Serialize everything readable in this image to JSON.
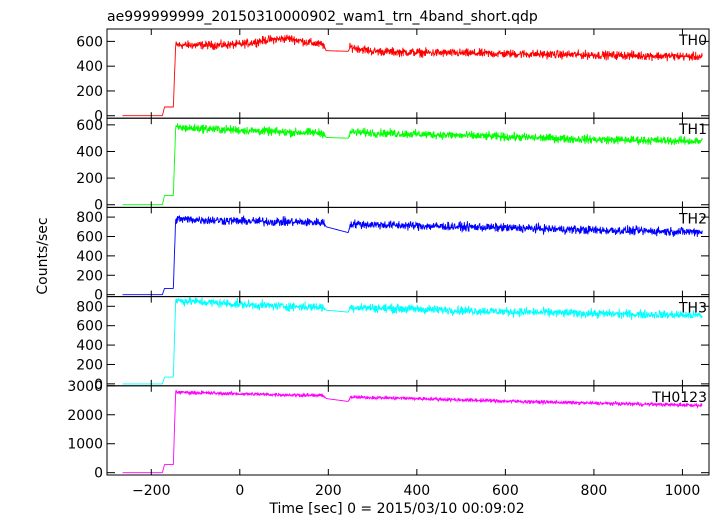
{
  "chart_data": {
    "type": "line",
    "title": "ae999999999_20150310000902_wam1_trn_4band_short.qdp",
    "xlabel": "Time [sec] 0 = 2015/03/10 00:09:02",
    "ylabel": "Counts/sec",
    "xlim": [
      -300,
      1060
    ],
    "x_ticks": [
      -200,
      0,
      200,
      400,
      600,
      800,
      1000
    ],
    "x_tick_labels": [
      "−200",
      "0",
      "200",
      "400",
      "600",
      "800",
      "1000"
    ],
    "grid": false,
    "panels": [
      {
        "name": "TH0",
        "color": "#ff0000",
        "ylim": [
          -20,
          700
        ],
        "y_ticks": [
          0,
          200,
          400,
          600
        ],
        "y_tick_labels": [
          "0",
          "200",
          "400",
          "600"
        ],
        "noise": 26,
        "points": [
          {
            "x": -265,
            "y": 0
          },
          {
            "x": -175,
            "y": 0
          },
          {
            "x": -170,
            "y": 70
          },
          {
            "x": -150,
            "y": 70
          },
          {
            "x": -145,
            "y": 570
          },
          {
            "x": -50,
            "y": 570
          },
          {
            "x": 0,
            "y": 575
          },
          {
            "x": 60,
            "y": 610
          },
          {
            "x": 110,
            "y": 625
          },
          {
            "x": 150,
            "y": 595
          },
          {
            "x": 190,
            "y": 570
          },
          {
            "x": 195,
            "y": 525
          },
          {
            "x": 245,
            "y": 520
          },
          {
            "x": 250,
            "y": 555
          },
          {
            "x": 300,
            "y": 520
          },
          {
            "x": 400,
            "y": 510
          },
          {
            "x": 600,
            "y": 500
          },
          {
            "x": 800,
            "y": 490
          },
          {
            "x": 1000,
            "y": 480
          },
          {
            "x": 1045,
            "y": 475
          }
        ]
      },
      {
        "name": "TH1",
        "color": "#00ff00",
        "ylim": [
          -20,
          650
        ],
        "y_ticks": [
          0,
          200,
          400,
          600
        ],
        "y_tick_labels": [
          "0",
          "200",
          "400",
          "600"
        ],
        "noise": 24,
        "points": [
          {
            "x": -265,
            "y": 0
          },
          {
            "x": -175,
            "y": 0
          },
          {
            "x": -170,
            "y": 70
          },
          {
            "x": -150,
            "y": 70
          },
          {
            "x": -145,
            "y": 580
          },
          {
            "x": 0,
            "y": 560
          },
          {
            "x": 100,
            "y": 545
          },
          {
            "x": 190,
            "y": 540
          },
          {
            "x": 195,
            "y": 505
          },
          {
            "x": 245,
            "y": 500
          },
          {
            "x": 250,
            "y": 545
          },
          {
            "x": 400,
            "y": 530
          },
          {
            "x": 600,
            "y": 510
          },
          {
            "x": 800,
            "y": 490
          },
          {
            "x": 1000,
            "y": 480
          },
          {
            "x": 1045,
            "y": 475
          }
        ]
      },
      {
        "name": "TH2",
        "color": "#0000ff",
        "ylim": [
          -20,
          900
        ],
        "y_ticks": [
          0,
          200,
          400,
          600,
          800
        ],
        "y_tick_labels": [
          "0",
          "200",
          "400",
          "600",
          "800"
        ],
        "noise": 34,
        "points": [
          {
            "x": -265,
            "y": 0
          },
          {
            "x": -175,
            "y": 0
          },
          {
            "x": -170,
            "y": 65
          },
          {
            "x": -150,
            "y": 65
          },
          {
            "x": -145,
            "y": 780
          },
          {
            "x": 0,
            "y": 760
          },
          {
            "x": 100,
            "y": 750
          },
          {
            "x": 190,
            "y": 745
          },
          {
            "x": 195,
            "y": 700
          },
          {
            "x": 245,
            "y": 640
          },
          {
            "x": 250,
            "y": 730
          },
          {
            "x": 400,
            "y": 710
          },
          {
            "x": 600,
            "y": 690
          },
          {
            "x": 800,
            "y": 665
          },
          {
            "x": 1000,
            "y": 650
          },
          {
            "x": 1045,
            "y": 650
          }
        ]
      },
      {
        "name": "TH3",
        "color": "#00ffff",
        "ylim": [
          -20,
          900
        ],
        "y_ticks": [
          0,
          200,
          400,
          600,
          800
        ],
        "y_tick_labels": [
          "0",
          "200",
          "400",
          "600",
          "800"
        ],
        "noise": 34,
        "points": [
          {
            "x": -265,
            "y": 0
          },
          {
            "x": -175,
            "y": 0
          },
          {
            "x": -170,
            "y": 70
          },
          {
            "x": -150,
            "y": 70
          },
          {
            "x": -145,
            "y": 860
          },
          {
            "x": 0,
            "y": 820
          },
          {
            "x": 100,
            "y": 800
          },
          {
            "x": 190,
            "y": 790
          },
          {
            "x": 195,
            "y": 760
          },
          {
            "x": 245,
            "y": 740
          },
          {
            "x": 250,
            "y": 790
          },
          {
            "x": 400,
            "y": 770
          },
          {
            "x": 600,
            "y": 745
          },
          {
            "x": 800,
            "y": 725
          },
          {
            "x": 1000,
            "y": 710
          },
          {
            "x": 1045,
            "y": 705
          }
        ]
      },
      {
        "name": "TH0123",
        "color": "#ff00ff",
        "ylim": [
          -80,
          3000
        ],
        "y_ticks": [
          0,
          1000,
          2000,
          3000
        ],
        "y_tick_labels": [
          "0",
          "1000",
          "2000",
          "3000"
        ],
        "noise": 45,
        "points": [
          {
            "x": -265,
            "y": 0
          },
          {
            "x": -175,
            "y": 0
          },
          {
            "x": -170,
            "y": 280
          },
          {
            "x": -150,
            "y": 280
          },
          {
            "x": -145,
            "y": 2780
          },
          {
            "x": 0,
            "y": 2720
          },
          {
            "x": 100,
            "y": 2690
          },
          {
            "x": 190,
            "y": 2660
          },
          {
            "x": 195,
            "y": 2560
          },
          {
            "x": 245,
            "y": 2460
          },
          {
            "x": 250,
            "y": 2610
          },
          {
            "x": 400,
            "y": 2560
          },
          {
            "x": 600,
            "y": 2470
          },
          {
            "x": 800,
            "y": 2400
          },
          {
            "x": 1000,
            "y": 2340
          },
          {
            "x": 1045,
            "y": 2330
          }
        ]
      }
    ]
  }
}
